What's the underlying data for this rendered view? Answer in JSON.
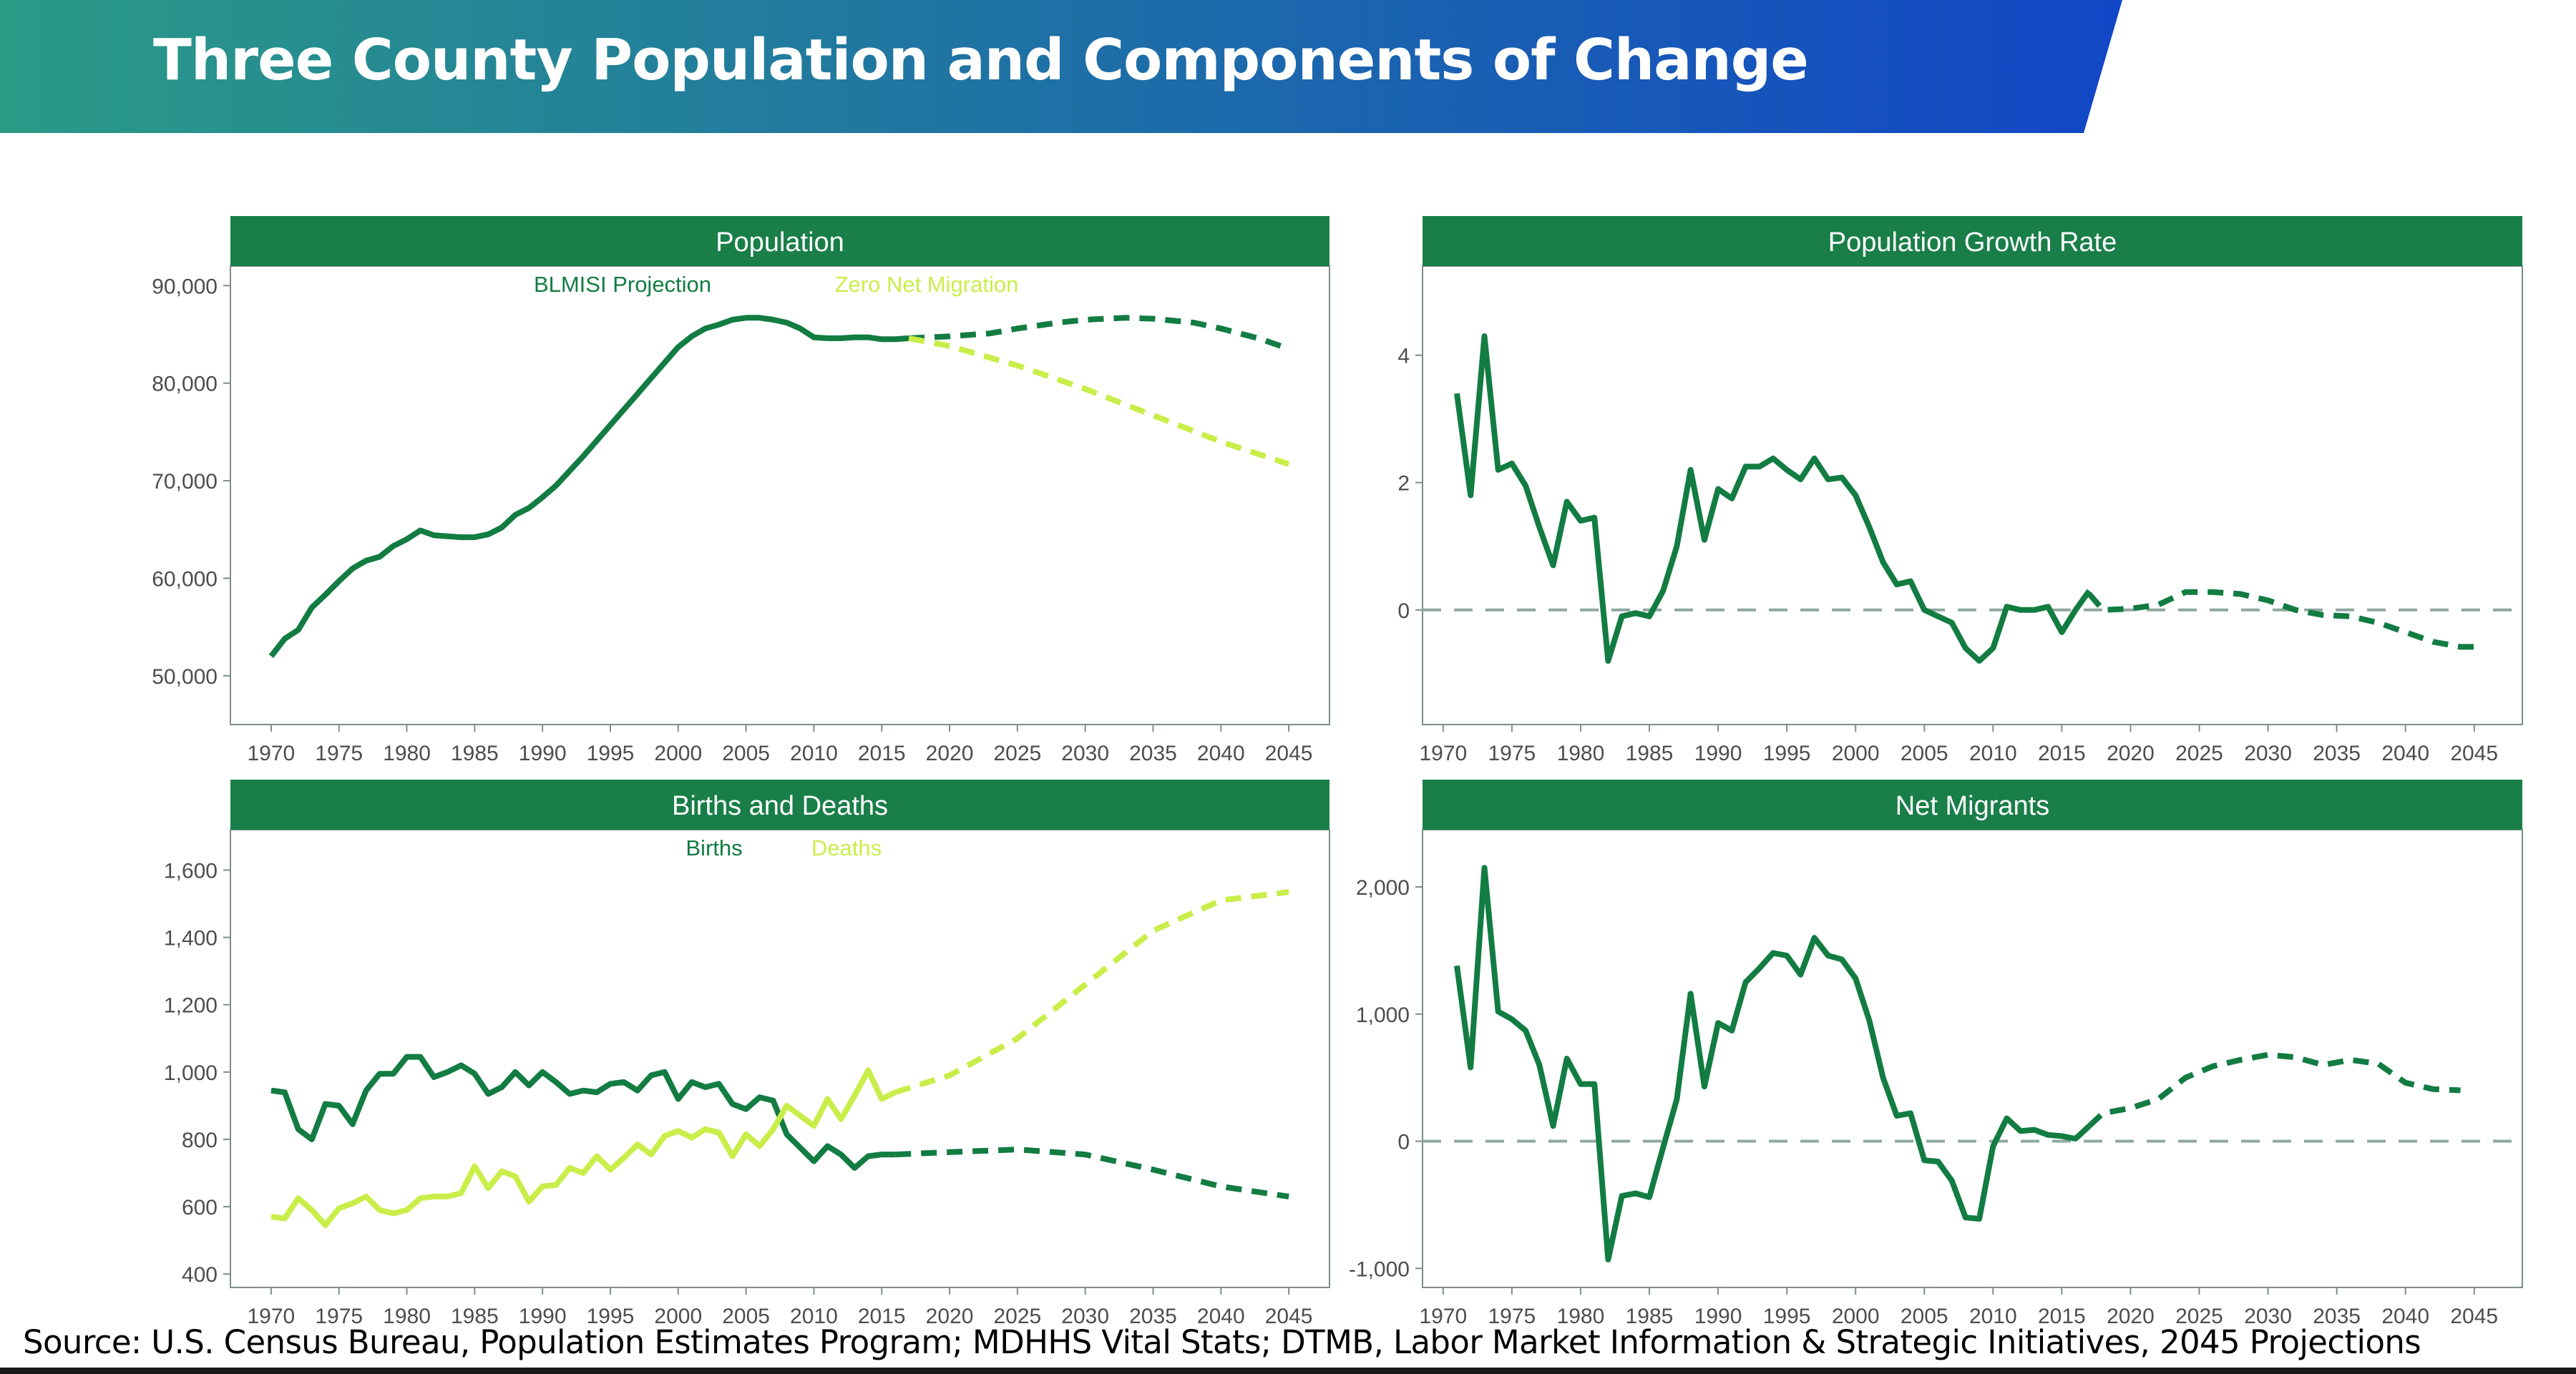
{
  "slide": {
    "title": "Three County Population and Components of Change",
    "source": "Source: U.S. Census Bureau, Population  Estimates Program; MDHHS Vital Stats; DTMB, Labor Market Information & Strategic Initiatives, 2045 Projections"
  },
  "colors": {
    "banner_start": "#2a9a86",
    "banner_end": "#1246c6",
    "strip": "#197e48",
    "dark_green": "#127c42",
    "light_green": "#c9ee4a",
    "zero_line": "#8fa8a0",
    "axis_text": "#4d4d4d"
  },
  "chart_data": [
    {
      "type": "line",
      "title": "Population",
      "legend": [
        "BLMISI Projection",
        "Zero Net Migration"
      ],
      "legend_placement": "top",
      "xlim": [
        1967,
        2048
      ],
      "ylim": [
        45000,
        92000
      ],
      "x_ticks": [
        1970,
        1975,
        1980,
        1985,
        1990,
        1995,
        2000,
        2005,
        2010,
        2015,
        2020,
        2025,
        2030,
        2035,
        2040,
        2045
      ],
      "y_ticks": [
        50000,
        60000,
        70000,
        80000,
        90000
      ],
      "y_tick_labels": [
        "50,000",
        "60,000",
        "70,000",
        "80,000",
        "90,000"
      ],
      "series": [
        {
          "name": "BLMISI Projection",
          "color": "dark_green",
          "style": "solid",
          "x": [
            1970,
            1971,
            1972,
            1973,
            1974,
            1975,
            1976,
            1977,
            1978,
            1979,
            1980,
            1981,
            1982,
            1983,
            1984,
            1985,
            1986,
            1987,
            1988,
            1989,
            1990,
            1991,
            1992,
            1993,
            1994,
            1995,
            1996,
            1997,
            1998,
            1999,
            2000,
            2001,
            2002,
            2003,
            2004,
            2005,
            2006,
            2007,
            2008,
            2009,
            2010,
            2011,
            2012,
            2013,
            2014,
            2015,
            2016,
            2017
          ],
          "y": [
            52000,
            53800,
            54700,
            57000,
            58300,
            59700,
            61000,
            61800,
            62200,
            63300,
            64000,
            64900,
            64400,
            64300,
            64200,
            64200,
            64500,
            65200,
            66500,
            67200,
            68300,
            69500,
            71000,
            72500,
            74100,
            75700,
            77300,
            78900,
            80500,
            82100,
            83700,
            84800,
            85600,
            86000,
            86500,
            86700,
            86700,
            86500,
            86200,
            85600,
            84700,
            84600,
            84600,
            84700,
            84700,
            84500,
            84500,
            84600
          ]
        },
        {
          "name": "BLMISI Projection",
          "color": "dark_green",
          "style": "dashed",
          "x": [
            2017,
            2020,
            2023,
            2025,
            2028,
            2030,
            2033,
            2035,
            2038,
            2040,
            2043,
            2045
          ],
          "y": [
            84600,
            84800,
            85100,
            85600,
            86200,
            86500,
            86700,
            86600,
            86200,
            85600,
            84500,
            83500
          ]
        },
        {
          "name": "Zero Net Migration",
          "color": "light_green",
          "style": "dashed",
          "x": [
            2017,
            2020,
            2025,
            2030,
            2035,
            2040,
            2045
          ],
          "y": [
            84600,
            83800,
            81800,
            79400,
            76700,
            74000,
            71700
          ]
        }
      ]
    },
    {
      "type": "line",
      "title": "Population Growth Rate",
      "xlim": [
        1968.5,
        2048.5
      ],
      "ylim": [
        -1.8,
        5.4
      ],
      "x_ticks": [
        1970,
        1975,
        1980,
        1985,
        1990,
        1995,
        2000,
        2005,
        2010,
        2015,
        2020,
        2025,
        2030,
        2035,
        2040,
        2045
      ],
      "y_ticks": [
        0,
        2,
        4
      ],
      "y_tick_labels": [
        "0",
        "2",
        "4"
      ],
      "zero_line": true,
      "series": [
        {
          "style": "solid",
          "color": "dark_green",
          "x": [
            1971,
            1972,
            1973,
            1974,
            1975,
            1976,
            1977,
            1978,
            1979,
            1980,
            1981,
            1982,
            1983,
            1984,
            1985,
            1986,
            1987,
            1988,
            1989,
            1990,
            1991,
            1992,
            1993,
            1994,
            1995,
            1996,
            1997,
            1998,
            1999,
            2000,
            2001,
            2002,
            2003,
            2004,
            2005,
            2006,
            2007,
            2008,
            2009,
            2010,
            2011,
            2012,
            2013,
            2014,
            2015,
            2016,
            2017
          ],
          "y": [
            3.4,
            1.8,
            4.3,
            2.2,
            2.3,
            1.95,
            1.3,
            0.7,
            1.7,
            1.4,
            1.45,
            -0.8,
            -0.1,
            -0.05,
            -0.1,
            0.3,
            1.0,
            2.2,
            1.1,
            1.9,
            1.75,
            2.25,
            2.25,
            2.38,
            2.2,
            2.05,
            2.38,
            2.05,
            2.08,
            1.8,
            1.3,
            0.75,
            0.4,
            0.45,
            0.0,
            -0.1,
            -0.2,
            -0.6,
            -0.8,
            -0.6,
            0.05,
            0.0,
            0.0,
            0.05,
            -0.35,
            0.0,
            0.3
          ]
        },
        {
          "style": "dashed",
          "color": "dark_green",
          "x": [
            2017,
            2018,
            2020,
            2022,
            2024,
            2026,
            2028,
            2030,
            2032,
            2034,
            2036,
            2038,
            2040,
            2042,
            2044,
            2045
          ],
          "y": [
            0.25,
            0.0,
            0.02,
            0.08,
            0.28,
            0.28,
            0.25,
            0.15,
            0.0,
            -0.08,
            -0.1,
            -0.2,
            -0.35,
            -0.5,
            -0.58,
            -0.58
          ]
        }
      ]
    },
    {
      "type": "line",
      "title": "Births and Deaths",
      "legend": [
        "Births",
        "Deaths"
      ],
      "legend_placement": "top",
      "xlim": [
        1967,
        2048
      ],
      "ylim": [
        360,
        1720
      ],
      "x_ticks": [
        1970,
        1975,
        1980,
        1985,
        1990,
        1995,
        2000,
        2005,
        2010,
        2015,
        2020,
        2025,
        2030,
        2035,
        2040,
        2045
      ],
      "y_ticks": [
        400,
        600,
        800,
        1000,
        1200,
        1400,
        1600
      ],
      "y_tick_labels": [
        "400",
        "600",
        "800",
        "1,000",
        "1,200",
        "1,400",
        "1,600"
      ],
      "series": [
        {
          "name": "Births",
          "color": "dark_green",
          "style": "solid",
          "x": [
            1970,
            1971,
            1972,
            1973,
            1974,
            1975,
            1976,
            1977,
            1978,
            1979,
            1980,
            1981,
            1982,
            1983,
            1984,
            1985,
            1986,
            1987,
            1988,
            1989,
            1990,
            1991,
            1992,
            1993,
            1994,
            1995,
            1996,
            1997,
            1998,
            1999,
            2000,
            2001,
            2002,
            2003,
            2004,
            2005,
            2006,
            2007,
            2008,
            2009,
            2010,
            2011,
            2012,
            2013,
            2014,
            2015,
            2016
          ],
          "y": [
            945,
            940,
            830,
            800,
            905,
            900,
            845,
            945,
            995,
            995,
            1045,
            1045,
            985,
            1000,
            1020,
            995,
            935,
            955,
            1000,
            960,
            1000,
            970,
            935,
            945,
            940,
            965,
            970,
            945,
            990,
            1000,
            920,
            970,
            955,
            965,
            905,
            890,
            925,
            915,
            815,
            775,
            735,
            780,
            755,
            715,
            750,
            755,
            755
          ]
        },
        {
          "name": "Births",
          "color": "dark_green",
          "style": "dashed",
          "x": [
            2016,
            2020,
            2025,
            2030,
            2035,
            2040,
            2045
          ],
          "y": [
            755,
            762,
            770,
            755,
            710,
            660,
            630
          ]
        },
        {
          "name": "Deaths",
          "color": "light_green",
          "style": "solid",
          "x": [
            1970,
            1971,
            1972,
            1973,
            1974,
            1975,
            1976,
            1977,
            1978,
            1979,
            1980,
            1981,
            1982,
            1983,
            1984,
            1985,
            1986,
            1987,
            1988,
            1989,
            1990,
            1991,
            1992,
            1993,
            1994,
            1995,
            1996,
            1997,
            1998,
            1999,
            2000,
            2001,
            2002,
            2003,
            2004,
            2005,
            2006,
            2007,
            2008,
            2009,
            2010,
            2011,
            2012,
            2013,
            2014,
            2015,
            2016
          ],
          "y": [
            570,
            565,
            625,
            590,
            545,
            595,
            610,
            630,
            590,
            580,
            590,
            625,
            630,
            630,
            640,
            720,
            655,
            705,
            690,
            615,
            660,
            665,
            715,
            700,
            750,
            710,
            745,
            785,
            755,
            810,
            825,
            805,
            830,
            820,
            750,
            815,
            780,
            830,
            900,
            870,
            840,
            920,
            860,
            930,
            1005,
            920,
            940
          ]
        },
        {
          "name": "Deaths",
          "color": "light_green",
          "style": "dashed",
          "x": [
            2016,
            2020,
            2025,
            2030,
            2035,
            2040,
            2045
          ],
          "y": [
            940,
            990,
            1100,
            1260,
            1420,
            1510,
            1535
          ]
        }
      ]
    },
    {
      "type": "line",
      "title": "Net Migrants",
      "xlim": [
        1968.5,
        2048.5
      ],
      "ylim": [
        -1150,
        2450
      ],
      "x_ticks": [
        1970,
        1975,
        1980,
        1985,
        1990,
        1995,
        2000,
        2005,
        2010,
        2015,
        2020,
        2025,
        2030,
        2035,
        2040,
        2045
      ],
      "y_ticks": [
        -1000,
        0,
        1000,
        2000
      ],
      "y_tick_labels": [
        "-1,000",
        "0",
        "1,000",
        "2,000"
      ],
      "zero_line": true,
      "series": [
        {
          "style": "solid",
          "color": "dark_green",
          "x": [
            1971,
            1972,
            1973,
            1974,
            1975,
            1976,
            1977,
            1978,
            1979,
            1980,
            1981,
            1982,
            1983,
            1984,
            1985,
            1986,
            1987,
            1988,
            1989,
            1990,
            1991,
            1992,
            1993,
            1994,
            1995,
            1996,
            1997,
            1998,
            1999,
            2000,
            2001,
            2002,
            2003,
            2004,
            2005,
            2006,
            2007,
            2008,
            2009,
            2010,
            2011,
            2012,
            2013,
            2014,
            2015,
            2016,
            2017
          ],
          "y": [
            1380,
            580,
            2150,
            1020,
            960,
            870,
            600,
            120,
            650,
            450,
            450,
            -930,
            -430,
            -410,
            -440,
            -50,
            330,
            1160,
            430,
            930,
            870,
            1250,
            1360,
            1480,
            1460,
            1310,
            1600,
            1460,
            1430,
            1280,
            950,
            500,
            200,
            220,
            -150,
            -160,
            -310,
            -600,
            -610,
            -40,
            180,
            80,
            90,
            50,
            40,
            20,
            120
          ]
        },
        {
          "style": "dashed",
          "color": "dark_green",
          "x": [
            2017,
            2018,
            2020,
            2022,
            2024,
            2026,
            2028,
            2030,
            2032,
            2034,
            2036,
            2038,
            2040,
            2042,
            2044
          ],
          "y": [
            120,
            220,
            260,
            330,
            500,
            590,
            640,
            680,
            660,
            600,
            640,
            610,
            460,
            410,
            400
          ]
        }
      ]
    }
  ]
}
